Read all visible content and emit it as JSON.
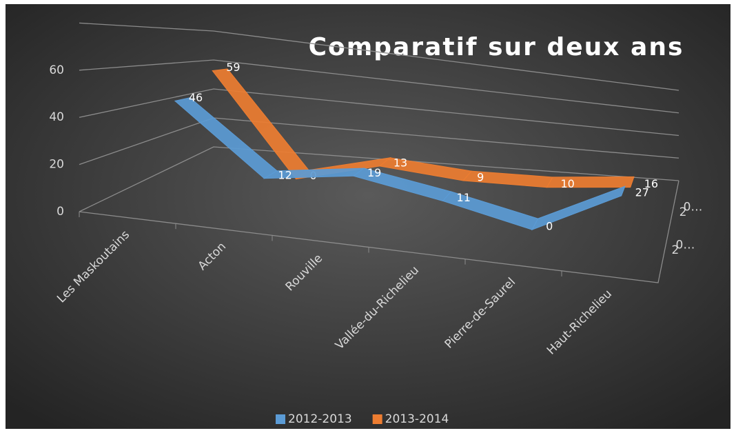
{
  "chart_data": {
    "type": "line3d",
    "title": "Comparatif sur deux ans",
    "categories": [
      "Les Maskoutains",
      "Acton",
      "Rouville",
      "Vallée-du-Richelieu",
      "Pierre-de-Saurel",
      "Haut-Richelieu"
    ],
    "series": [
      {
        "name": "2012-2013",
        "color": "#5b9bd5",
        "values": [
          46,
          12,
          19,
          11,
          0,
          27
        ]
      },
      {
        "name": "2013-2014",
        "color": "#ed7d31",
        "values": [
          59,
          0,
          13,
          9,
          10,
          16
        ]
      }
    ],
    "depth_labels": [
      [
        "2",
        "0…"
      ],
      [
        "2",
        "0…"
      ]
    ],
    "ylim": [
      0,
      80
    ],
    "yticks": [
      0,
      20,
      40,
      60
    ],
    "grid": true,
    "legend": "bottom"
  }
}
